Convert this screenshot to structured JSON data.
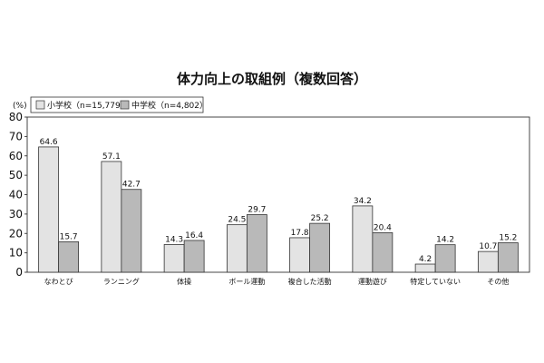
{
  "chart_data": {
    "type": "bar",
    "title": "体力向上の取組例（複数回答）",
    "unit_label": "(%)",
    "categories": [
      "なわとび",
      "ランニング",
      "体操",
      "ボール運動",
      "複合した活動",
      "運動遊び",
      "特定していない",
      "その他"
    ],
    "series": [
      {
        "name": "小学校（n=15,779）",
        "values": [
          64.6,
          57.1,
          14.3,
          24.5,
          17.8,
          34.2,
          4.2,
          10.7
        ]
      },
      {
        "name": "中学校（n=4,802）",
        "values": [
          15.7,
          42.7,
          16.4,
          29.7,
          25.2,
          20.4,
          14.2,
          15.2
        ]
      }
    ],
    "value_labels": [
      [
        "64.6",
        "57.1",
        "14.3",
        "24.5",
        "17.8",
        "34.2",
        "4.2",
        "10.7"
      ],
      [
        "15.7",
        "42.7",
        "16.4",
        "29.7",
        "25.2",
        "20.4",
        "14.2",
        "15.2"
      ]
    ],
    "yticks": [
      "0",
      "10",
      "20",
      "30",
      "40",
      "50",
      "60",
      "70",
      "80"
    ],
    "ylim": [
      0,
      80
    ],
    "legend_position": "top-left",
    "grid": false,
    "colors": {
      "elementary": "#e3e3e3",
      "junior": "#b9b9b9",
      "stroke": "#333333"
    }
  }
}
